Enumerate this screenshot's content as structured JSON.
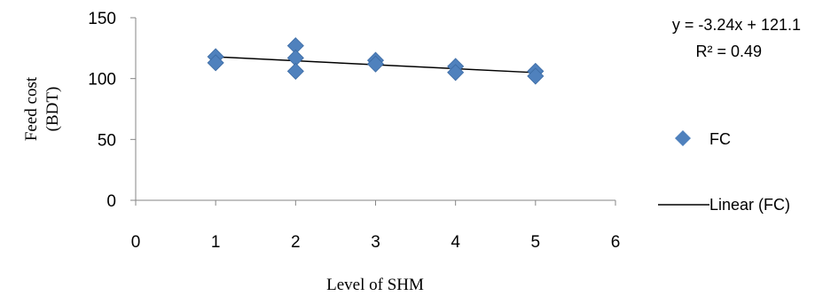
{
  "chart_data": {
    "type": "scatter",
    "title": "",
    "xlabel": "Level of SHM",
    "ylabel_lines": [
      "Feed cost",
      "(BDT)"
    ],
    "xlim": [
      0,
      6
    ],
    "ylim": [
      0,
      150
    ],
    "xticks": [
      0,
      1,
      2,
      3,
      4,
      5,
      6
    ],
    "yticks": [
      0,
      50,
      100,
      150
    ],
    "grid": false,
    "legend_position": "right",
    "series": [
      {
        "name": "FC",
        "marker": "diamond",
        "color": "#4F81BD",
        "points": [
          {
            "x": 1,
            "y": 118
          },
          {
            "x": 1,
            "y": 113
          },
          {
            "x": 2,
            "y": 127
          },
          {
            "x": 2,
            "y": 117
          },
          {
            "x": 2,
            "y": 106
          },
          {
            "x": 3,
            "y": 115
          },
          {
            "x": 3,
            "y": 112
          },
          {
            "x": 4,
            "y": 110
          },
          {
            "x": 4,
            "y": 105
          },
          {
            "x": 5,
            "y": 106
          },
          {
            "x": 5,
            "y": 102
          }
        ]
      }
    ],
    "trendline": {
      "name": "Linear (FC)",
      "slope": -3.24,
      "intercept": 121.1,
      "x_range": [
        1,
        5
      ],
      "color": "#000000",
      "equation": "y = -3.24x + 121.1",
      "r_squared": "R² = 0.49"
    }
  }
}
